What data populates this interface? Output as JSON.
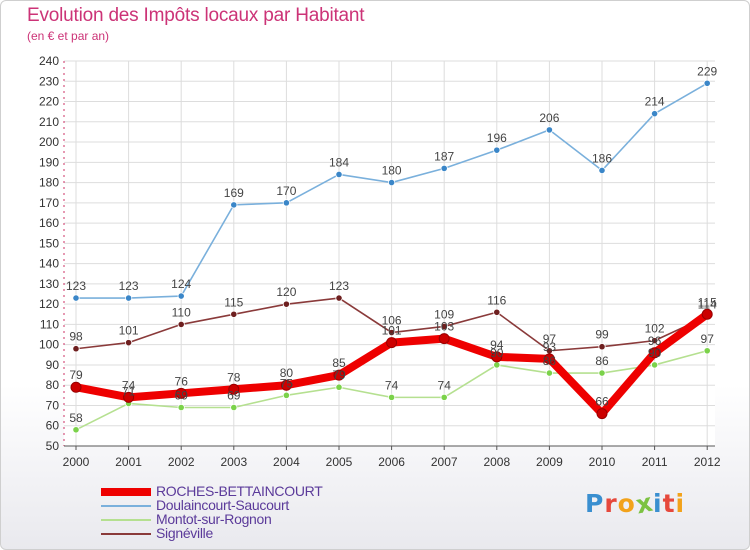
{
  "header": {
    "title": "Evolution des Impôts locaux par Habitant",
    "subtitle": "(en € et par an)"
  },
  "logo": {
    "text": "Proxiti",
    "letters": [
      {
        "ch": "P",
        "color": "#3a8fd0"
      },
      {
        "ch": "r",
        "color": "#e6483c"
      },
      {
        "ch": "o",
        "color": "#f2a21a"
      },
      {
        "ch": "x",
        "color": "#7cc242"
      },
      {
        "ch": "i",
        "color": "#3a8fd0"
      },
      {
        "ch": "t",
        "color": "#e6483c"
      },
      {
        "ch": "i",
        "color": "#f2a21a"
      }
    ]
  },
  "chart_data": {
    "type": "line",
    "title": "Evolution des Impôts locaux par Habitant",
    "subtitle": "(en € et par an)",
    "xlabel": "",
    "ylabel": "",
    "ylim": [
      50,
      240
    ],
    "ytick_step": 10,
    "grid": true,
    "legend_position": "bottom-left",
    "categories": [
      "2000",
      "2001",
      "2002",
      "2003",
      "2004",
      "2005",
      "2006",
      "2007",
      "2008",
      "2009",
      "2010",
      "2011",
      "2012"
    ],
    "series": [
      {
        "name": "Doulaincourt-Saucourt",
        "color": "#7ab0dc",
        "marker": "#3a86c8",
        "values": [
          123,
          123,
          124,
          169,
          170,
          184,
          180,
          187,
          196,
          206,
          186,
          214,
          229
        ],
        "labels": [
          "123",
          "123",
          "124",
          "169",
          "170",
          "184",
          "180",
          "187",
          "196",
          "206",
          "186",
          "214",
          "229"
        ]
      },
      {
        "name": "Signéville",
        "color": "#8a3a3a",
        "marker": "#6e1f1f",
        "values": [
          98,
          101,
          110,
          115,
          120,
          123,
          106,
          109,
          116,
          97,
          99,
          102,
          114
        ],
        "labels": [
          "98",
          "101",
          "110",
          "115",
          "120",
          "123",
          "106",
          "109",
          "116",
          "97",
          "99",
          "102",
          "114"
        ]
      },
      {
        "name": "Montot-sur-Rognon",
        "color": "#b5e090",
        "marker": "#7bd24a",
        "values": [
          58,
          71,
          69,
          69,
          75,
          79,
          74,
          74,
          90,
          86,
          86,
          90,
          97
        ],
        "labels": [
          "58",
          "71",
          "69",
          "69",
          "75",
          "79",
          "74",
          "74",
          "90",
          "86",
          "86",
          "90",
          "97"
        ]
      },
      {
        "name": "ROCHES-BETTAINCOURT",
        "color": "#ee0000",
        "marker": "#cc0000",
        "values": [
          79,
          74,
          76,
          78,
          80,
          85,
          101,
          103,
          94,
          93,
          66,
          96,
          115
        ],
        "labels": [
          "79",
          "74",
          "76",
          "78",
          "80",
          "85",
          "101",
          "103",
          "94",
          "93",
          "66",
          "96",
          "115"
        ]
      }
    ]
  },
  "legend": {
    "items": [
      {
        "label": "ROCHES-BETTAINCOURT",
        "color": "#ee0000",
        "thickness": 8
      },
      {
        "label": "Doulaincourt-Saucourt",
        "color": "#7ab0dc",
        "thickness": 2
      },
      {
        "label": "Montot-sur-Rognon",
        "color": "#b5e090",
        "thickness": 2
      },
      {
        "label": "Signéville",
        "color": "#8a3a3a",
        "thickness": 2
      }
    ],
    "text_color": "#5b3a9a"
  }
}
